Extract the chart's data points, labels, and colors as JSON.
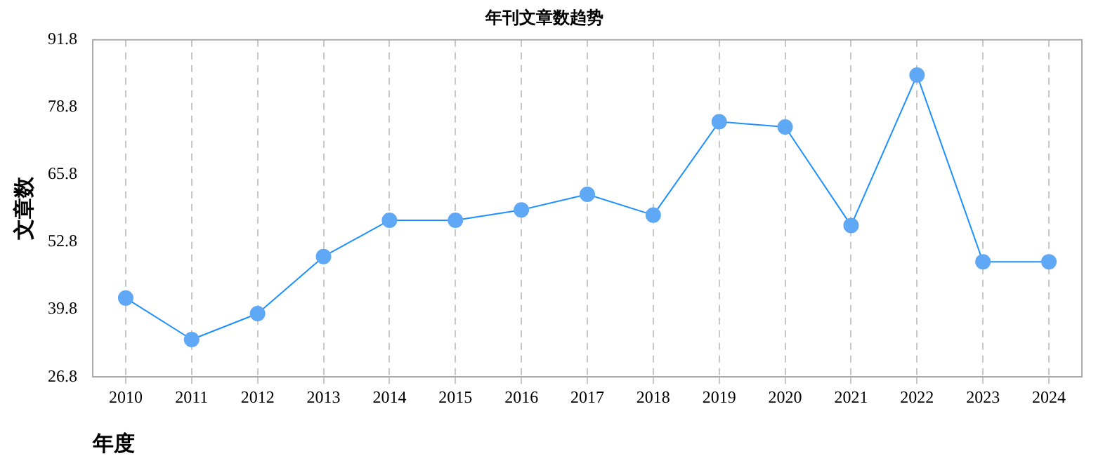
{
  "chart_data": {
    "type": "line",
    "title": "年刊文章数趋势",
    "xlabel": "年度",
    "ylabel": "文章数",
    "categories": [
      "2010",
      "2011",
      "2012",
      "2013",
      "2014",
      "2015",
      "2016",
      "2017",
      "2018",
      "2019",
      "2020",
      "2021",
      "2022",
      "2023",
      "2024"
    ],
    "series": [
      {
        "color": "#1e90ff",
        "values": [
          42,
          34,
          39,
          50,
          57,
          57,
          59,
          62,
          58,
          76,
          75,
          56,
          85,
          49,
          49
        ]
      }
    ],
    "ylim": [
      26.8,
      91.8
    ],
    "yticks": [
      26.8,
      39.8,
      52.8,
      65.8,
      78.8,
      91.8
    ],
    "grid": "x",
    "legend": false,
    "marker": "circle",
    "line_style": "solid"
  }
}
